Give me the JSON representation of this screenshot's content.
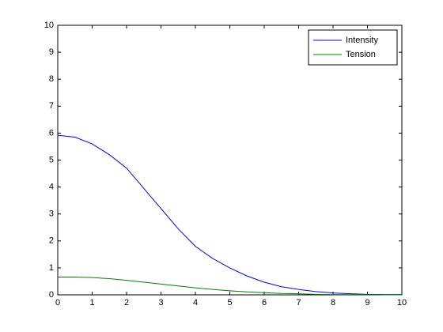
{
  "chart_data": {
    "type": "line",
    "x": [
      0,
      0.5,
      1,
      1.5,
      2,
      2.5,
      3,
      3.5,
      4,
      4.5,
      5,
      5.5,
      6,
      6.5,
      7,
      7.5,
      8,
      8.5,
      9,
      9.5,
      10
    ],
    "series": [
      {
        "name": "Intensity",
        "color": "#0000ff",
        "values": [
          5.92,
          5.85,
          5.6,
          5.2,
          4.7,
          3.95,
          3.2,
          2.45,
          1.8,
          1.35,
          1.0,
          0.7,
          0.47,
          0.3,
          0.2,
          0.12,
          0.07,
          0.04,
          0.02,
          0.01,
          0.01
        ]
      },
      {
        "name": "Tension",
        "color": "#008000",
        "values": [
          0.66,
          0.66,
          0.64,
          0.6,
          0.54,
          0.47,
          0.4,
          0.33,
          0.26,
          0.2,
          0.15,
          0.11,
          0.08,
          0.05,
          0.04,
          0.02,
          0.01,
          0.01,
          0.01,
          0,
          0
        ]
      }
    ],
    "xlim": [
      0,
      10
    ],
    "xticks": [
      0,
      1,
      2,
      3,
      4,
      5,
      6,
      7,
      8,
      9,
      10
    ],
    "ylim": [
      0,
      10
    ],
    "yticks": [
      0,
      1,
      2,
      3,
      4,
      5,
      6,
      7,
      8,
      9,
      10
    ],
    "grid": false,
    "legend": "northeast"
  }
}
